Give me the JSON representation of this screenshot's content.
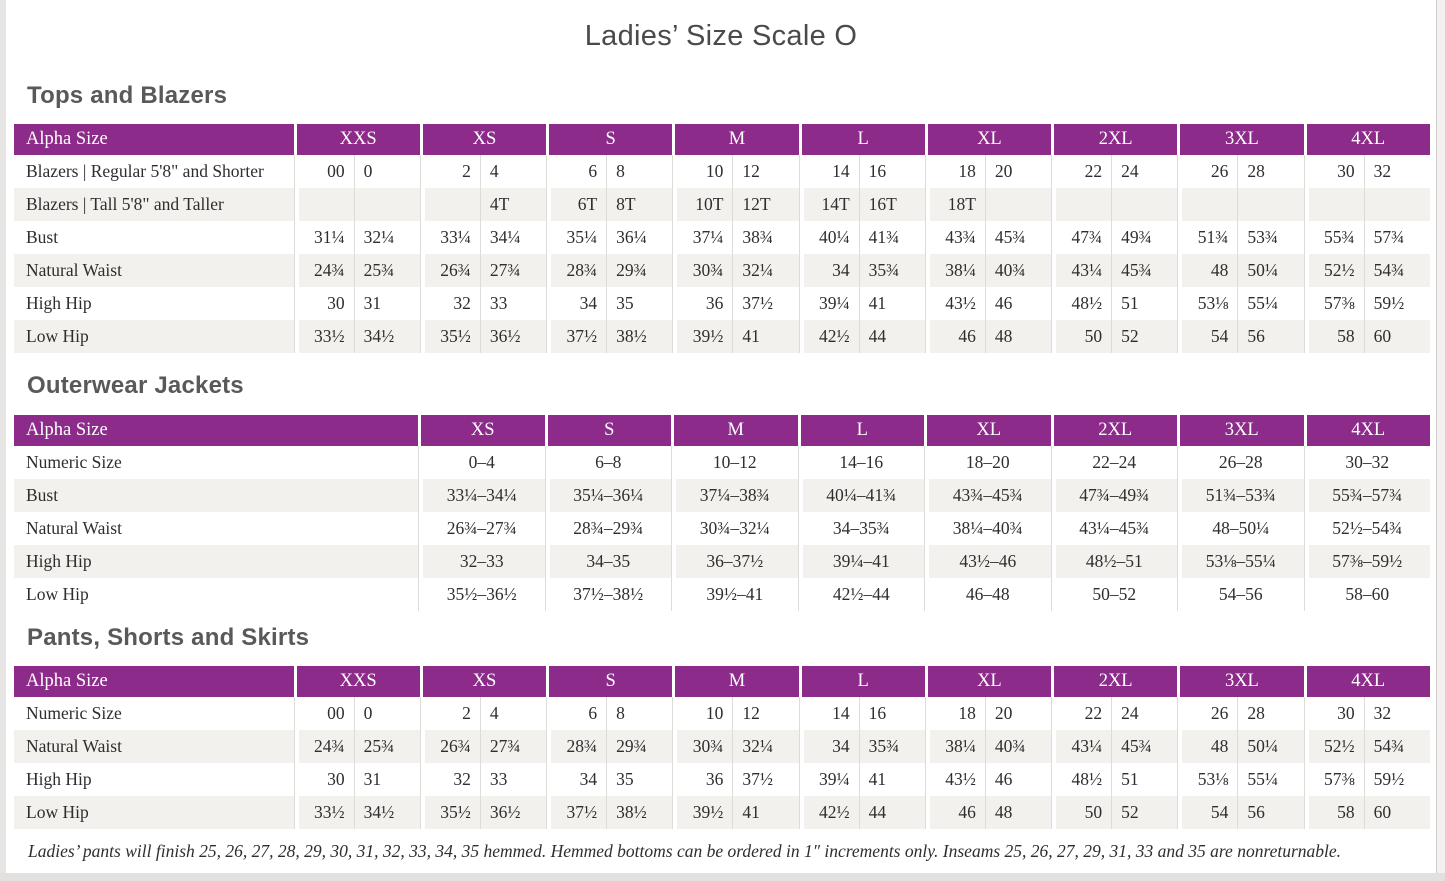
{
  "page": {
    "title": "Ladies’ Size Scale O"
  },
  "colors": {
    "header_purple": "#8D2B8B",
    "stripe_gray": "#F2F1ED",
    "header_text": "#FFFFFF",
    "body_text": "#2E2E2E"
  },
  "tables": [
    {
      "heading": "Tops and Blazers",
      "type": "split",
      "label_header": "Alpha Size",
      "groups": [
        "XXS",
        "XS",
        "S",
        "M",
        "L",
        "XL",
        "2XL",
        "3XL",
        "4XL"
      ],
      "rows": [
        {
          "label": "Blazers | Regular 5'8\" and Shorter",
          "values": [
            [
              "00",
              "0"
            ],
            [
              "2",
              "4"
            ],
            [
              "6",
              "8"
            ],
            [
              "10",
              "12"
            ],
            [
              "14",
              "16"
            ],
            [
              "18",
              "20"
            ],
            [
              "22",
              "24"
            ],
            [
              "26",
              "28"
            ],
            [
              "30",
              "32"
            ]
          ]
        },
        {
          "label": "Blazers | Tall 5'8\" and Taller",
          "values": [
            [
              "",
              ""
            ],
            [
              "",
              "4T"
            ],
            [
              "6T",
              "8T"
            ],
            [
              "10T",
              "12T"
            ],
            [
              "14T",
              "16T"
            ],
            [
              "18T",
              ""
            ],
            [
              "",
              ""
            ],
            [
              "",
              ""
            ],
            [
              "",
              ""
            ]
          ]
        },
        {
          "label": "Bust",
          "values": [
            [
              "31¼",
              "32¼"
            ],
            [
              "33¼",
              "34¼"
            ],
            [
              "35¼",
              "36¼"
            ],
            [
              "37¼",
              "38¾"
            ],
            [
              "40¼",
              "41¾"
            ],
            [
              "43¾",
              "45¾"
            ],
            [
              "47¾",
              "49¾"
            ],
            [
              "51¾",
              "53¾"
            ],
            [
              "55¾",
              "57¾"
            ]
          ]
        },
        {
          "label": "Natural Waist",
          "values": [
            [
              "24¾",
              "25¾"
            ],
            [
              "26¾",
              "27¾"
            ],
            [
              "28¾",
              "29¾"
            ],
            [
              "30¾",
              "32¼"
            ],
            [
              "34",
              "35¾"
            ],
            [
              "38¼",
              "40¾"
            ],
            [
              "43¼",
              "45¾"
            ],
            [
              "48",
              "50¼"
            ],
            [
              "52½",
              "54¾"
            ]
          ]
        },
        {
          "label": "High Hip",
          "values": [
            [
              "30",
              "31"
            ],
            [
              "32",
              "33"
            ],
            [
              "34",
              "35"
            ],
            [
              "36",
              "37½"
            ],
            [
              "39¼",
              "41"
            ],
            [
              "43½",
              "46"
            ],
            [
              "48½",
              "51"
            ],
            [
              "53⅛",
              "55¼"
            ],
            [
              "57⅜",
              "59½"
            ]
          ]
        },
        {
          "label": "Low Hip",
          "values": [
            [
              "33½",
              "34½"
            ],
            [
              "35½",
              "36½"
            ],
            [
              "37½",
              "38½"
            ],
            [
              "39½",
              "41"
            ],
            [
              "42½",
              "44"
            ],
            [
              "46",
              "48"
            ],
            [
              "50",
              "52"
            ],
            [
              "54",
              "56"
            ],
            [
              "58",
              "60"
            ]
          ]
        }
      ]
    },
    {
      "heading": "Outerwear Jackets",
      "type": "merged",
      "label_header": "Alpha Size",
      "groups": [
        "XS",
        "S",
        "M",
        "L",
        "XL",
        "2XL",
        "3XL",
        "4XL"
      ],
      "rows": [
        {
          "label": "Numeric Size",
          "values": [
            "0–4",
            "6–8",
            "10–12",
            "14–16",
            "18–20",
            "22–24",
            "26–28",
            "30–32"
          ]
        },
        {
          "label": "Bust",
          "values": [
            "33¼–34¼",
            "35¼–36¼",
            "37¼–38¾",
            "40¼–41¾",
            "43¾–45¾",
            "47¾–49¾",
            "51¾–53¾",
            "55¾–57¾"
          ]
        },
        {
          "label": "Natural Waist",
          "values": [
            "26¾–27¾",
            "28¾–29¾",
            "30¾–32¼",
            "34–35¾",
            "38¼–40¾",
            "43¼–45¾",
            "48–50¼",
            "52½–54¾"
          ]
        },
        {
          "label": "High Hip",
          "values": [
            "32–33",
            "34–35",
            "36–37½",
            "39¼–41",
            "43½–46",
            "48½–51",
            "53⅛–55¼",
            "57⅜–59½"
          ]
        },
        {
          "label": "Low Hip",
          "values": [
            "35½–36½",
            "37½–38½",
            "39½–41",
            "42½–44",
            "46–48",
            "50–52",
            "54–56",
            "58–60"
          ]
        }
      ]
    },
    {
      "heading": "Pants, Shorts and Skirts",
      "type": "split",
      "label_header": "Alpha Size",
      "groups": [
        "XXS",
        "XS",
        "S",
        "M",
        "L",
        "XL",
        "2XL",
        "3XL",
        "4XL"
      ],
      "rows": [
        {
          "label": "Numeric Size",
          "values": [
            [
              "00",
              "0"
            ],
            [
              "2",
              "4"
            ],
            [
              "6",
              "8"
            ],
            [
              "10",
              "12"
            ],
            [
              "14",
              "16"
            ],
            [
              "18",
              "20"
            ],
            [
              "22",
              "24"
            ],
            [
              "26",
              "28"
            ],
            [
              "30",
              "32"
            ]
          ]
        },
        {
          "label": "Natural Waist",
          "values": [
            [
              "24¾",
              "25¾"
            ],
            [
              "26¾",
              "27¾"
            ],
            [
              "28¾",
              "29¾"
            ],
            [
              "30¾",
              "32¼"
            ],
            [
              "34",
              "35¾"
            ],
            [
              "38¼",
              "40¾"
            ],
            [
              "43¼",
              "45¾"
            ],
            [
              "48",
              "50¼"
            ],
            [
              "52½",
              "54¾"
            ]
          ]
        },
        {
          "label": "High Hip",
          "values": [
            [
              "30",
              "31"
            ],
            [
              "32",
              "33"
            ],
            [
              "34",
              "35"
            ],
            [
              "36",
              "37½"
            ],
            [
              "39¼",
              "41"
            ],
            [
              "43½",
              "46"
            ],
            [
              "48½",
              "51"
            ],
            [
              "53⅛",
              "55¼"
            ],
            [
              "57⅜",
              "59½"
            ]
          ]
        },
        {
          "label": "Low Hip",
          "values": [
            [
              "33½",
              "34½"
            ],
            [
              "35½",
              "36½"
            ],
            [
              "37½",
              "38½"
            ],
            [
              "39½",
              "41"
            ],
            [
              "42½",
              "44"
            ],
            [
              "46",
              "48"
            ],
            [
              "50",
              "52"
            ],
            [
              "54",
              "56"
            ],
            [
              "58",
              "60"
            ]
          ]
        }
      ]
    }
  ],
  "footnote": "Ladies’ pants will finish 25, 26, 27, 28, 29, 30, 31, 32, 33, 34, 35 hemmed. Hemmed bottoms can be ordered in 1″ increments only. Inseams 25, 26, 27, 29, 31, 33 and 35 are nonreturnable."
}
